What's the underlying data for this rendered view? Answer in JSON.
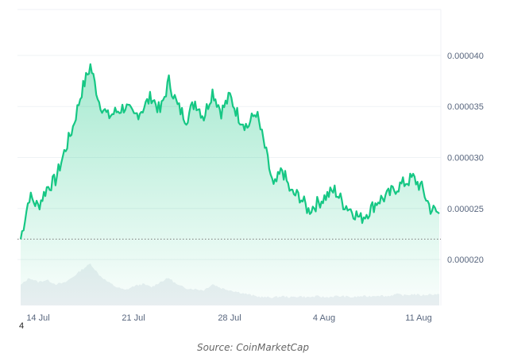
{
  "chart_data": {
    "type": "area",
    "y_ticks": [
      "0.000040",
      "0.000035",
      "0.000030",
      "0.000025",
      "0.000020"
    ],
    "y_tick_values": [
      4e-05,
      3.5e-05,
      3e-05,
      2.5e-05,
      2e-05
    ],
    "x_ticks": [
      "14 Jul",
      "21 Jul",
      "28 Jul",
      "4 Aug",
      "11 Aug"
    ],
    "ylim": [
      1.55e-05,
      4.45e-05
    ],
    "baseline": 2.2e-05,
    "line_color": "#16c784",
    "series": [
      {
        "values": [
          2.2e-05,
          2.62e-05,
          2.52e-05,
          2.7e-05,
          2.78e-05,
          3.05e-05,
          3.3e-05,
          3.65e-05,
          3.9e-05,
          3.55e-05,
          3.4e-05,
          3.45e-05,
          3.5e-05,
          3.4e-05,
          3.48e-05,
          3.6e-05,
          3.45e-05,
          3.75e-05,
          3.5e-05,
          3.38e-05,
          3.55e-05,
          3.4e-05,
          3.65e-05,
          3.45e-05,
          3.6e-05,
          3.4e-05,
          3.3e-05,
          3.45e-05,
          3.1e-05,
          2.7e-05,
          2.88e-05,
          2.65e-05,
          2.62e-05,
          2.48e-05,
          2.55e-05,
          2.62e-05,
          2.68e-05,
          2.55e-05,
          2.48e-05,
          2.4e-05,
          2.48e-05,
          2.58e-05,
          2.62e-05,
          2.7e-05,
          2.75e-05,
          2.8e-05,
          2.7e-05,
          2.5e-05,
          2.45e-05
        ]
      }
    ],
    "volume": {
      "values": [
        1.75e-05,
        1.82e-05,
        1.78e-05,
        1.8e-05,
        1.76e-05,
        1.77e-05,
        1.83e-05,
        1.9e-05,
        1.96e-05,
        1.85e-05,
        1.78e-05,
        1.73e-05,
        1.7e-05,
        1.74e-05,
        1.76e-05,
        1.73e-05,
        1.78e-05,
        1.82e-05,
        1.75e-05,
        1.72e-05,
        1.71e-05,
        1.7e-05,
        1.76e-05,
        1.72e-05,
        1.7e-05,
        1.68e-05,
        1.66e-05,
        1.64e-05,
        1.63e-05,
        1.63e-05,
        1.64e-05,
        1.63e-05,
        1.64e-05,
        1.63e-05,
        1.64e-05,
        1.63e-05,
        1.64e-05,
        1.64e-05,
        1.63e-05,
        1.64e-05,
        1.64e-05,
        1.65e-05,
        1.64e-05,
        1.66e-05,
        1.65e-05,
        1.66e-05,
        1.65e-05,
        1.66e-05,
        1.66e-05
      ]
    }
  },
  "stray_label": "4",
  "source": "Source: CoinMarketCap"
}
